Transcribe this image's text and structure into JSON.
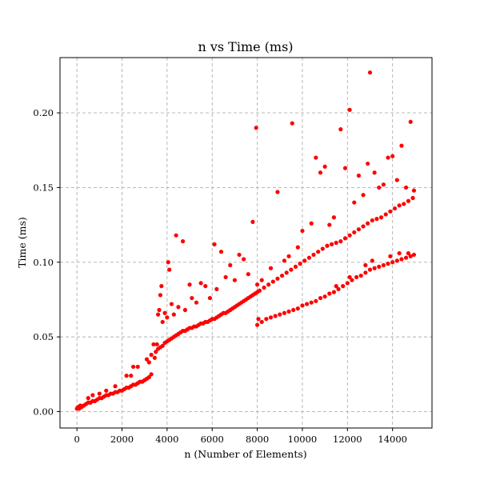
{
  "chart_data": {
    "type": "scatter",
    "title": "n vs Time (ms)",
    "xlabel": "n (Number of Elements)",
    "ylabel": "Time (ms)",
    "xlim": [
      -750,
      15750
    ],
    "ylim": [
      -0.011,
      0.237
    ],
    "x_ticks": [
      0,
      2000,
      4000,
      6000,
      8000,
      10000,
      12000,
      14000
    ],
    "x_tick_labels": [
      "0",
      "2000",
      "4000",
      "6000",
      "8000",
      "10000",
      "12000",
      "14000"
    ],
    "y_ticks": [
      0.0,
      0.05,
      0.1,
      0.15,
      0.2
    ],
    "y_tick_labels": [
      "0.00",
      "0.05",
      "0.10",
      "0.15",
      "0.20"
    ],
    "grid": true,
    "marker_color": "#ff0000",
    "series": [
      {
        "points": [
          [
            0,
            0.002
          ],
          [
            50,
            0.003
          ],
          [
            100,
            0.002
          ],
          [
            150,
            0.004
          ],
          [
            200,
            0.003
          ],
          [
            300,
            0.004
          ],
          [
            400,
            0.005
          ],
          [
            500,
            0.006
          ],
          [
            600,
            0.006
          ],
          [
            700,
            0.007
          ],
          [
            800,
            0.007
          ],
          [
            900,
            0.008
          ],
          [
            1000,
            0.009
          ],
          [
            1100,
            0.009
          ],
          [
            1200,
            0.01
          ],
          [
            1300,
            0.011
          ],
          [
            1400,
            0.011
          ],
          [
            1500,
            0.012
          ],
          [
            1600,
            0.012
          ],
          [
            1700,
            0.013
          ],
          [
            1800,
            0.013
          ],
          [
            1900,
            0.014
          ],
          [
            2000,
            0.014
          ],
          [
            2100,
            0.015
          ],
          [
            2200,
            0.016
          ],
          [
            2300,
            0.016
          ],
          [
            2400,
            0.017
          ],
          [
            2500,
            0.018
          ],
          [
            2600,
            0.018
          ],
          [
            2700,
            0.019
          ],
          [
            2800,
            0.02
          ],
          [
            2900,
            0.02
          ],
          [
            3000,
            0.021
          ],
          [
            3100,
            0.022
          ],
          [
            3200,
            0.023
          ],
          [
            3300,
            0.025
          ],
          [
            500,
            0.009
          ],
          [
            700,
            0.011
          ],
          [
            1000,
            0.012
          ],
          [
            1300,
            0.014
          ],
          [
            1700,
            0.017
          ],
          [
            2200,
            0.024
          ],
          [
            2400,
            0.024
          ],
          [
            2500,
            0.03
          ],
          [
            2700,
            0.03
          ],
          [
            3100,
            0.035
          ],
          [
            3200,
            0.033
          ],
          [
            3300,
            0.038
          ],
          [
            3400,
            0.045
          ],
          [
            3450,
            0.036
          ],
          [
            3500,
            0.04
          ],
          [
            3600,
            0.042
          ],
          [
            3700,
            0.043
          ],
          [
            3800,
            0.044
          ],
          [
            3900,
            0.046
          ],
          [
            4000,
            0.047
          ],
          [
            4100,
            0.048
          ],
          [
            4200,
            0.049
          ],
          [
            4300,
            0.05
          ],
          [
            4400,
            0.051
          ],
          [
            4500,
            0.052
          ],
          [
            4600,
            0.053
          ],
          [
            4700,
            0.054
          ],
          [
            4800,
            0.054
          ],
          [
            4900,
            0.055
          ],
          [
            5000,
            0.056
          ],
          [
            5100,
            0.056
          ],
          [
            5200,
            0.057
          ],
          [
            5300,
            0.057
          ],
          [
            5400,
            0.058
          ],
          [
            5500,
            0.059
          ],
          [
            5600,
            0.059
          ],
          [
            5700,
            0.06
          ],
          [
            5800,
            0.06
          ],
          [
            5900,
            0.061
          ],
          [
            6000,
            0.062
          ],
          [
            6100,
            0.062
          ],
          [
            6200,
            0.063
          ],
          [
            6300,
            0.064
          ],
          [
            6400,
            0.065
          ],
          [
            6500,
            0.066
          ],
          [
            6600,
            0.066
          ],
          [
            6700,
            0.067
          ],
          [
            6800,
            0.068
          ],
          [
            6900,
            0.069
          ],
          [
            7000,
            0.07
          ],
          [
            7100,
            0.071
          ],
          [
            7200,
            0.072
          ],
          [
            7300,
            0.073
          ],
          [
            7400,
            0.074
          ],
          [
            7500,
            0.075
          ],
          [
            7600,
            0.076
          ],
          [
            7700,
            0.077
          ],
          [
            7800,
            0.078
          ],
          [
            7900,
            0.079
          ],
          [
            8000,
            0.08
          ],
          [
            3550,
            0.045
          ],
          [
            3600,
            0.065
          ],
          [
            3650,
            0.068
          ],
          [
            3700,
            0.078
          ],
          [
            3750,
            0.084
          ],
          [
            3800,
            0.06
          ],
          [
            3900,
            0.066
          ],
          [
            4000,
            0.063
          ],
          [
            4050,
            0.1
          ],
          [
            4100,
            0.095
          ],
          [
            4200,
            0.072
          ],
          [
            4300,
            0.065
          ],
          [
            4400,
            0.118
          ],
          [
            4500,
            0.07
          ],
          [
            4700,
            0.114
          ],
          [
            4800,
            0.068
          ],
          [
            5000,
            0.085
          ],
          [
            5100,
            0.076
          ],
          [
            5300,
            0.073
          ],
          [
            5500,
            0.086
          ],
          [
            5700,
            0.084
          ],
          [
            5900,
            0.076
          ],
          [
            6100,
            0.112
          ],
          [
            6200,
            0.082
          ],
          [
            6400,
            0.107
          ],
          [
            6600,
            0.09
          ],
          [
            6800,
            0.098
          ],
          [
            7000,
            0.088
          ],
          [
            7200,
            0.105
          ],
          [
            7400,
            0.102
          ],
          [
            7600,
            0.092
          ],
          [
            7800,
            0.127
          ],
          [
            8000,
            0.085
          ],
          [
            7950,
            0.19
          ],
          [
            9550,
            0.193
          ],
          [
            8100,
            0.081
          ],
          [
            8300,
            0.083
          ],
          [
            8500,
            0.085
          ],
          [
            8700,
            0.087
          ],
          [
            8900,
            0.089
          ],
          [
            9100,
            0.091
          ],
          [
            9300,
            0.093
          ],
          [
            9500,
            0.095
          ],
          [
            9700,
            0.097
          ],
          [
            9900,
            0.099
          ],
          [
            10100,
            0.101
          ],
          [
            10300,
            0.103
          ],
          [
            10500,
            0.105
          ],
          [
            10700,
            0.107
          ],
          [
            10900,
            0.109
          ],
          [
            11100,
            0.111
          ],
          [
            11300,
            0.112
          ],
          [
            11500,
            0.113
          ],
          [
            11700,
            0.114
          ],
          [
            11900,
            0.116
          ],
          [
            12100,
            0.118
          ],
          [
            12300,
            0.12
          ],
          [
            12500,
            0.122
          ],
          [
            12700,
            0.124
          ],
          [
            12900,
            0.126
          ],
          [
            13100,
            0.128
          ],
          [
            13300,
            0.129
          ],
          [
            13500,
            0.13
          ],
          [
            13700,
            0.132
          ],
          [
            13900,
            0.134
          ],
          [
            14100,
            0.136
          ],
          [
            14300,
            0.138
          ],
          [
            14500,
            0.139
          ],
          [
            14700,
            0.141
          ],
          [
            14900,
            0.143
          ],
          [
            8200,
            0.088
          ],
          [
            8600,
            0.096
          ],
          [
            8900,
            0.147
          ],
          [
            9200,
            0.101
          ],
          [
            9400,
            0.104
          ],
          [
            9800,
            0.11
          ],
          [
            10000,
            0.121
          ],
          [
            10400,
            0.126
          ],
          [
            10600,
            0.17
          ],
          [
            10800,
            0.16
          ],
          [
            11000,
            0.164
          ],
          [
            11200,
            0.125
          ],
          [
            11400,
            0.13
          ],
          [
            11700,
            0.189
          ],
          [
            11900,
            0.163
          ],
          [
            12100,
            0.202
          ],
          [
            12300,
            0.14
          ],
          [
            12500,
            0.158
          ],
          [
            12700,
            0.145
          ],
          [
            12900,
            0.166
          ],
          [
            13000,
            0.227
          ],
          [
            13200,
            0.16
          ],
          [
            13400,
            0.15
          ],
          [
            13600,
            0.152
          ],
          [
            13800,
            0.17
          ],
          [
            14000,
            0.171
          ],
          [
            14200,
            0.155
          ],
          [
            14400,
            0.178
          ],
          [
            14600,
            0.15
          ],
          [
            14800,
            0.194
          ],
          [
            14950,
            0.148
          ],
          [
            8000,
            0.058
          ],
          [
            8200,
            0.06
          ],
          [
            8400,
            0.062
          ],
          [
            8600,
            0.063
          ],
          [
            8800,
            0.064
          ],
          [
            9000,
            0.065
          ],
          [
            9200,
            0.066
          ],
          [
            9400,
            0.067
          ],
          [
            9600,
            0.068
          ],
          [
            9800,
            0.069
          ],
          [
            10000,
            0.071
          ],
          [
            10200,
            0.072
          ],
          [
            10400,
            0.073
          ],
          [
            10600,
            0.074
          ],
          [
            10800,
            0.076
          ],
          [
            11000,
            0.077
          ],
          [
            11200,
            0.079
          ],
          [
            11400,
            0.08
          ],
          [
            11600,
            0.082
          ],
          [
            11800,
            0.084
          ],
          [
            12000,
            0.086
          ],
          [
            12200,
            0.088
          ],
          [
            12400,
            0.09
          ],
          [
            12600,
            0.091
          ],
          [
            12800,
            0.093
          ],
          [
            13000,
            0.095
          ],
          [
            13200,
            0.096
          ],
          [
            13400,
            0.097
          ],
          [
            13600,
            0.098
          ],
          [
            13800,
            0.099
          ],
          [
            14000,
            0.1
          ],
          [
            14200,
            0.101
          ],
          [
            14400,
            0.102
          ],
          [
            14600,
            0.103
          ],
          [
            14800,
            0.104
          ],
          [
            14950,
            0.105
          ],
          [
            8050,
            0.062
          ],
          [
            11500,
            0.084
          ],
          [
            12100,
            0.09
          ],
          [
            12800,
            0.098
          ],
          [
            13100,
            0.101
          ],
          [
            13900,
            0.104
          ],
          [
            14300,
            0.106
          ],
          [
            14700,
            0.106
          ]
        ]
      }
    ]
  }
}
